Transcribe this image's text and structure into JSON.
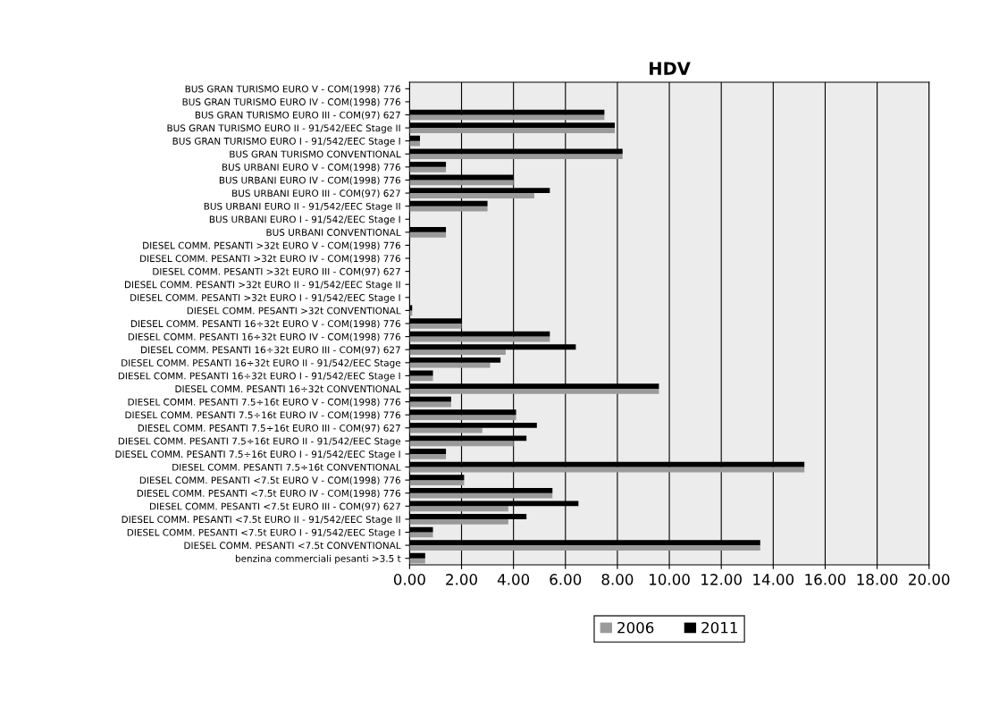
{
  "chart_data": {
    "type": "bar",
    "orientation": "horizontal",
    "title": "HDV",
    "categories": [
      "BUS GRAN TURISMO EURO V - COM(1998) 776",
      "BUS GRAN TURISMO EURO IV - COM(1998) 776",
      "BUS GRAN TURISMO EURO III - COM(97) 627",
      "BUS GRAN TURISMO EURO II - 91/542/EEC Stage II",
      "BUS GRAN TURISMO EURO I - 91/542/EEC Stage I",
      "BUS GRAN TURISMO CONVENTIONAL",
      "BUS URBANI EURO V - COM(1998) 776",
      "BUS URBANI EURO IV - COM(1998) 776",
      "BUS URBANI EURO III - COM(97) 627",
      "BUS URBANI EURO II - 91/542/EEC Stage II",
      "BUS URBANI EURO I - 91/542/EEC Stage I",
      "BUS URBANI CONVENTIONAL",
      "DIESEL COMM. PESANTI >32t EURO V - COM(1998) 776",
      "DIESEL COMM. PESANTI >32t EURO IV - COM(1998) 776",
      "DIESEL COMM. PESANTI >32t EURO III - COM(97) 627",
      "DIESEL COMM. PESANTI >32t EURO II - 91/542/EEC Stage II",
      "DIESEL COMM. PESANTI >32t EURO I - 91/542/EEC Stage I",
      "DIESEL COMM. PESANTI >32t CONVENTIONAL",
      "DIESEL COMM. PESANTI 16÷32t EURO V - COM(1998) 776",
      "DIESEL COMM. PESANTI 16÷32t EURO IV - COM(1998) 776",
      "DIESEL COMM. PESANTI 16÷32t EURO III - COM(97) 627",
      "DIESEL COMM. PESANTI 16÷32t EURO II - 91/542/EEC Stage",
      "DIESEL COMM. PESANTI 16÷32t EURO I - 91/542/EEC Stage I",
      "DIESEL COMM. PESANTI 16÷32t CONVENTIONAL",
      "DIESEL COMM. PESANTI 7.5÷16t EURO V - COM(1998) 776",
      "DIESEL COMM. PESANTI 7.5÷16t EURO IV - COM(1998) 776",
      "DIESEL COMM. PESANTI 7.5÷16t EURO III - COM(97) 627",
      "DIESEL COMM. PESANTI 7.5÷16t EURO II - 91/542/EEC Stage",
      "DIESEL COMM. PESANTI 7.5÷16t EURO I - 91/542/EEC Stage I",
      "DIESEL COMM. PESANTI 7.5÷16t CONVENTIONAL",
      "DIESEL COMM. PESANTI <7.5t EURO V - COM(1998) 776",
      "DIESEL COMM. PESANTI <7.5t EURO IV - COM(1998) 776",
      "DIESEL COMM. PESANTI <7.5t EURO III - COM(97) 627",
      "DIESEL COMM. PESANTI <7.5t EURO II - 91/542/EEC Stage II",
      "DIESEL COMM. PESANTI <7.5t EURO I - 91/542/EEC Stage I",
      "DIESEL COMM. PESANTI <7.5t CONVENTIONAL",
      "benzina commerciali pesanti >3.5 t"
    ],
    "series": [
      {
        "name": "2006",
        "color": "#9a9a9a",
        "values": [
          0,
          0,
          7.5,
          7.9,
          0.4,
          8.2,
          1.4,
          4.0,
          4.8,
          3.0,
          0,
          1.4,
          0,
          0,
          0,
          0,
          0,
          0.1,
          2.0,
          5.4,
          3.7,
          3.1,
          0.9,
          9.6,
          1.6,
          4.1,
          2.8,
          4.0,
          1.4,
          15.2,
          2.1,
          5.5,
          3.8,
          3.8,
          0.9,
          13.5,
          0.6
        ]
      },
      {
        "name": "2011",
        "color": "#000000",
        "values": [
          0,
          0,
          7.5,
          7.9,
          0.4,
          8.2,
          1.4,
          4.0,
          5.4,
          3.0,
          0,
          1.4,
          0,
          0,
          0,
          0,
          0,
          0.1,
          2.0,
          5.4,
          6.4,
          3.5,
          0.9,
          9.6,
          1.6,
          4.1,
          4.9,
          4.5,
          1.4,
          15.2,
          2.1,
          5.5,
          6.5,
          4.5,
          0.9,
          13.5,
          0.6
        ]
      }
    ],
    "xlim": [
      0,
      20
    ],
    "xticks": [
      {
        "value": 0,
        "label": "0.00"
      },
      {
        "value": 2,
        "label": "2.00"
      },
      {
        "value": 4,
        "label": "4.00"
      },
      {
        "value": 6,
        "label": "6.00"
      },
      {
        "value": 8,
        "label": "8.00"
      },
      {
        "value": 10,
        "label": "10.00"
      },
      {
        "value": 12,
        "label": "12.00"
      },
      {
        "value": 14,
        "label": "14.00"
      },
      {
        "value": 16,
        "label": "16.00"
      },
      {
        "value": 18,
        "label": "18.00"
      },
      {
        "value": 20,
        "label": "20.00"
      }
    ],
    "grid": "x",
    "legend": "bottom"
  }
}
